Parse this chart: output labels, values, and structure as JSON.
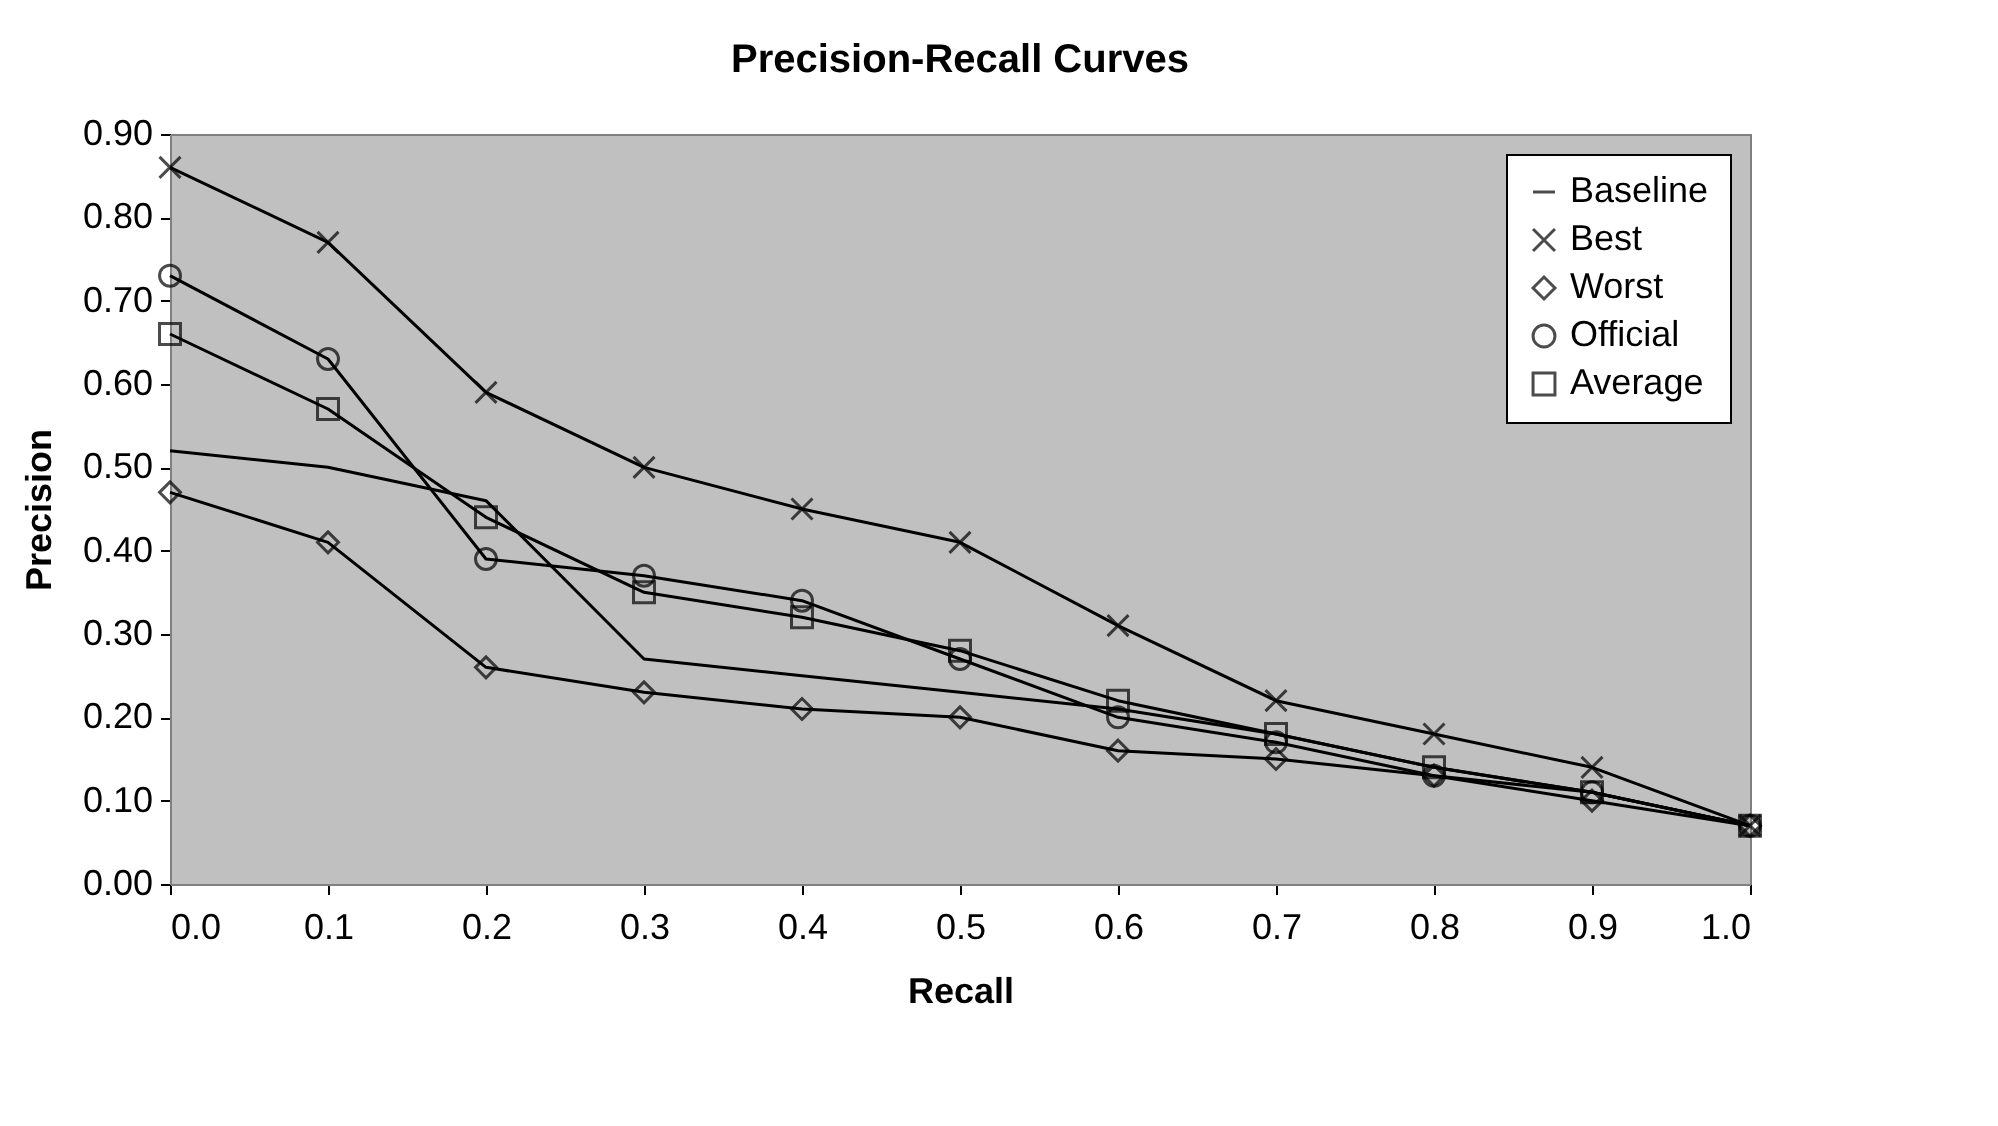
{
  "chart_data": {
    "type": "line",
    "title": "Precision-Recall Curves",
    "xlabel": "Recall",
    "ylabel": "Precision",
    "x": [
      0.0,
      0.1,
      0.2,
      0.3,
      0.4,
      0.5,
      0.6,
      0.7,
      0.8,
      0.9,
      1.0
    ],
    "xlim": [
      0.0,
      1.0
    ],
    "xticks": [
      {
        "value": 0.0,
        "label": "0.0"
      },
      {
        "value": 0.1,
        "label": "0.1"
      },
      {
        "value": 0.2,
        "label": "0.2"
      },
      {
        "value": 0.3,
        "label": "0.3"
      },
      {
        "value": 0.4,
        "label": "0.4"
      },
      {
        "value": 0.5,
        "label": "0.5"
      },
      {
        "value": 0.6,
        "label": "0.6"
      },
      {
        "value": 0.7,
        "label": "0.7"
      },
      {
        "value": 0.8,
        "label": "0.8"
      },
      {
        "value": 0.9,
        "label": "0.9"
      },
      {
        "value": 1.0,
        "label": "1.0"
      }
    ],
    "ylim": [
      0.0,
      0.9
    ],
    "yticks": [
      {
        "value": 0.0,
        "label": "0.00"
      },
      {
        "value": 0.1,
        "label": "0.10"
      },
      {
        "value": 0.2,
        "label": "0.20"
      },
      {
        "value": 0.3,
        "label": "0.30"
      },
      {
        "value": 0.4,
        "label": "0.40"
      },
      {
        "value": 0.5,
        "label": "0.50"
      },
      {
        "value": 0.6,
        "label": "0.60"
      },
      {
        "value": 0.7,
        "label": "0.70"
      },
      {
        "value": 0.8,
        "label": "0.80"
      },
      {
        "value": 0.9,
        "label": "0.90"
      }
    ],
    "series": [
      {
        "name": "Baseline",
        "color": "#000000",
        "marker": "none",
        "values": [
          0.52,
          0.5,
          0.46,
          0.27,
          0.25,
          0.23,
          0.21,
          0.18,
          0.14,
          0.11,
          0.07
        ]
      },
      {
        "name": "Best",
        "color": "#000000",
        "marker": "cross",
        "values": [
          0.86,
          0.77,
          0.59,
          0.5,
          0.45,
          0.41,
          0.31,
          0.22,
          0.18,
          0.14,
          0.07
        ]
      },
      {
        "name": "Worst",
        "color": "#000000",
        "marker": "diamond",
        "values": [
          0.47,
          0.41,
          0.26,
          0.23,
          0.21,
          0.2,
          0.16,
          0.15,
          0.13,
          0.1,
          0.07
        ]
      },
      {
        "name": "Official",
        "color": "#000000",
        "marker": "circle",
        "values": [
          0.73,
          0.63,
          0.39,
          0.37,
          0.34,
          0.27,
          0.2,
          0.17,
          0.13,
          0.11,
          0.07
        ]
      },
      {
        "name": "Average",
        "color": "#000000",
        "marker": "square",
        "values": [
          0.66,
          0.57,
          0.44,
          0.35,
          0.32,
          0.28,
          0.22,
          0.18,
          0.14,
          0.11,
          0.07
        ]
      }
    ],
    "legend": "top right",
    "grid": false,
    "line_style": "solid"
  }
}
